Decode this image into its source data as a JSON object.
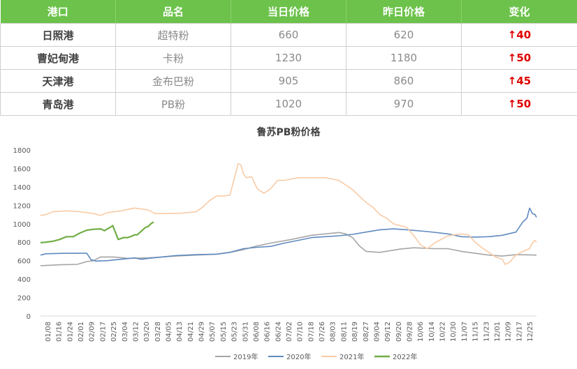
{
  "table": {
    "headers": [
      "港口",
      "品名",
      "当日价格",
      "昨日价格",
      "变化"
    ],
    "rows": [
      {
        "port": "日照港",
        "product": "超特粉",
        "today": "660",
        "yesterday": "620",
        "change": "↑40"
      },
      {
        "port": "曹妃甸港",
        "product": "卡粉",
        "today": "1230",
        "yesterday": "1180",
        "change": "↑50"
      },
      {
        "port": "天津港",
        "product": "金布巴粉",
        "today": "905",
        "yesterday": "860",
        "change": "↑45"
      },
      {
        "port": "青岛港",
        "product": "PB粉",
        "today": "1020",
        "yesterday": "970",
        "change": "↑50"
      }
    ]
  },
  "chart_data": {
    "type": "line",
    "title": "鲁苏PB粉价格",
    "ylim": [
      0,
      1800
    ],
    "yticks": [
      "0",
      "200",
      "400",
      "600",
      "800",
      "1000",
      "1200",
      "1400",
      "1600",
      "1800"
    ],
    "xlim": [
      1,
      365
    ],
    "categories": [
      "01/08",
      "01/16",
      "01/24",
      "02/01",
      "02/09",
      "02/17",
      "02/25",
      "03/04",
      "03/12",
      "03/20",
      "03/28",
      "04/05",
      "04/13",
      "04/21",
      "04/29",
      "05/07",
      "05/15",
      "05/23",
      "05/31",
      "06/08",
      "06/16",
      "06/24",
      "07/02",
      "07/10",
      "07/18",
      "07/26",
      "08/03",
      "08/11",
      "08/19",
      "08/27",
      "09/04",
      "09/12",
      "09/20",
      "09/28",
      "10/06",
      "10/14",
      "10/22",
      "10/30",
      "11/07",
      "11/15",
      "11/23",
      "12/01",
      "12/09",
      "12/17",
      "12/25"
    ],
    "grid": false,
    "legend_position": "bottom",
    "series": [
      {
        "name": "2019年",
        "color": "#a5a5a5",
        "points": [
          [
            1,
            545
          ],
          [
            15,
            555
          ],
          [
            28,
            560
          ],
          [
            35,
            590
          ],
          [
            40,
            600
          ],
          [
            45,
            640
          ],
          [
            55,
            640
          ],
          [
            65,
            625
          ],
          [
            80,
            630
          ],
          [
            90,
            640
          ],
          [
            100,
            650
          ],
          [
            115,
            660
          ],
          [
            130,
            670
          ],
          [
            140,
            690
          ],
          [
            150,
            720
          ],
          [
            160,
            760
          ],
          [
            170,
            790
          ],
          [
            185,
            830
          ],
          [
            200,
            875
          ],
          [
            210,
            890
          ],
          [
            220,
            905
          ],
          [
            225,
            890
          ],
          [
            230,
            850
          ],
          [
            235,
            760
          ],
          [
            240,
            700
          ],
          [
            250,
            690
          ],
          [
            265,
            725
          ],
          [
            275,
            740
          ],
          [
            290,
            730
          ],
          [
            300,
            730
          ],
          [
            310,
            700
          ],
          [
            320,
            680
          ],
          [
            330,
            660
          ],
          [
            340,
            650
          ],
          [
            350,
            665
          ],
          [
            365,
            660
          ]
        ]
      },
      {
        "name": "2020年",
        "color": "#5f8ac0",
        "points": [
          [
            1,
            660
          ],
          [
            5,
            675
          ],
          [
            20,
            680
          ],
          [
            35,
            680
          ],
          [
            38,
            610
          ],
          [
            42,
            595
          ],
          [
            50,
            600
          ],
          [
            60,
            615
          ],
          [
            70,
            630
          ],
          [
            75,
            615
          ],
          [
            80,
            625
          ],
          [
            90,
            640
          ],
          [
            100,
            655
          ],
          [
            115,
            665
          ],
          [
            130,
            670
          ],
          [
            140,
            690
          ],
          [
            150,
            730
          ],
          [
            160,
            745
          ],
          [
            170,
            755
          ],
          [
            180,
            790
          ],
          [
            190,
            820
          ],
          [
            200,
            850
          ],
          [
            210,
            860
          ],
          [
            220,
            870
          ],
          [
            230,
            885
          ],
          [
            240,
            910
          ],
          [
            250,
            935
          ],
          [
            260,
            945
          ],
          [
            270,
            935
          ],
          [
            285,
            915
          ],
          [
            300,
            890
          ],
          [
            310,
            860
          ],
          [
            320,
            855
          ],
          [
            330,
            860
          ],
          [
            340,
            875
          ],
          [
            350,
            910
          ],
          [
            355,
            1020
          ],
          [
            358,
            1060
          ],
          [
            360,
            1170
          ],
          [
            362,
            1110
          ],
          [
            364,
            1100
          ],
          [
            365,
            1070
          ]
        ]
      },
      {
        "name": "2021年",
        "color": "#f9cba6",
        "points": [
          [
            1,
            1090
          ],
          [
            5,
            1100
          ],
          [
            10,
            1130
          ],
          [
            20,
            1140
          ],
          [
            30,
            1130
          ],
          [
            40,
            1110
          ],
          [
            45,
            1090
          ],
          [
            50,
            1120
          ],
          [
            60,
            1140
          ],
          [
            70,
            1170
          ],
          [
            80,
            1150
          ],
          [
            85,
            1110
          ],
          [
            95,
            1110
          ],
          [
            105,
            1115
          ],
          [
            115,
            1130
          ],
          [
            120,
            1180
          ],
          [
            125,
            1250
          ],
          [
            130,
            1300
          ],
          [
            135,
            1300
          ],
          [
            140,
            1310
          ],
          [
            143,
            1480
          ],
          [
            146,
            1650
          ],
          [
            148,
            1640
          ],
          [
            150,
            1540
          ],
          [
            152,
            1500
          ],
          [
            156,
            1510
          ],
          [
            160,
            1380
          ],
          [
            165,
            1330
          ],
          [
            170,
            1380
          ],
          [
            175,
            1470
          ],
          [
            180,
            1470
          ],
          [
            190,
            1500
          ],
          [
            200,
            1500
          ],
          [
            210,
            1500
          ],
          [
            220,
            1470
          ],
          [
            225,
            1420
          ],
          [
            230,
            1370
          ],
          [
            240,
            1230
          ],
          [
            245,
            1180
          ],
          [
            250,
            1100
          ],
          [
            255,
            1060
          ],
          [
            260,
            1000
          ],
          [
            270,
            960
          ],
          [
            275,
            870
          ],
          [
            280,
            770
          ],
          [
            285,
            730
          ],
          [
            290,
            790
          ],
          [
            300,
            870
          ],
          [
            310,
            890
          ],
          [
            315,
            880
          ],
          [
            320,
            800
          ],
          [
            325,
            740
          ],
          [
            330,
            690
          ],
          [
            335,
            640
          ],
          [
            340,
            615
          ],
          [
            342,
            560
          ],
          [
            345,
            580
          ],
          [
            350,
            660
          ],
          [
            355,
            700
          ],
          [
            360,
            730
          ],
          [
            362,
            790
          ],
          [
            364,
            820
          ],
          [
            365,
            800
          ]
        ]
      },
      {
        "name": "2022年",
        "color": "#70ad47",
        "points": [
          [
            1,
            795
          ],
          [
            5,
            800
          ],
          [
            10,
            810
          ],
          [
            15,
            830
          ],
          [
            20,
            860
          ],
          [
            25,
            860
          ],
          [
            30,
            900
          ],
          [
            35,
            930
          ],
          [
            40,
            940
          ],
          [
            45,
            945
          ],
          [
            48,
            925
          ],
          [
            50,
            945
          ],
          [
            52,
            960
          ],
          [
            54,
            980
          ],
          [
            56,
            905
          ],
          [
            58,
            830
          ],
          [
            62,
            850
          ],
          [
            65,
            850
          ],
          [
            68,
            865
          ],
          [
            70,
            880
          ],
          [
            72,
            880
          ],
          [
            75,
            920
          ],
          [
            78,
            960
          ],
          [
            80,
            970
          ],
          [
            82,
            1000
          ],
          [
            84,
            1020
          ]
        ]
      }
    ]
  }
}
